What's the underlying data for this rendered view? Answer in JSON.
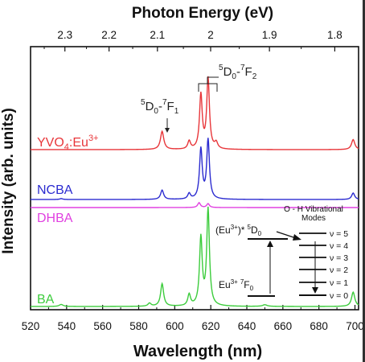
{
  "chart_data": {
    "type": "line",
    "top_axis": {
      "title": "Photon Energy (eV)",
      "ticks": [
        {
          "label": "2.3",
          "value": 2.3
        },
        {
          "label": "2.2",
          "value": 2.2
        },
        {
          "label": "2.1",
          "value": 2.1
        },
        {
          "label": "2",
          "value": 2.0
        },
        {
          "label": "1.9",
          "value": 1.9
        },
        {
          "label": "1.8",
          "value": 1.8
        }
      ]
    },
    "x_axis": {
      "title": "Wavelength (nm)",
      "range": [
        520,
        702
      ],
      "ticks": [
        "520",
        "540",
        "560",
        "580",
        "600",
        "620",
        "640",
        "660",
        "680",
        "700"
      ]
    },
    "y_axis": {
      "title": "Intensity (arb. units)"
    },
    "series": [
      {
        "name": "YVO4:Eu3+",
        "label_main": "YVO",
        "label_sub": "4",
        "label_tail": ":Eu",
        "label_sup": "3+",
        "color": "#e8363a",
        "baseline": 0.0,
        "peaks": [
          {
            "x": 593,
            "h": 0.09,
            "w": 1.1
          },
          {
            "x": 608,
            "h": 0.04,
            "w": 0.9
          },
          {
            "x": 614.5,
            "h": 0.27,
            "w": 0.9
          },
          {
            "x": 618.5,
            "h": 0.35,
            "w": 0.9
          },
          {
            "x": 623,
            "h": 0.03,
            "w": 1.0
          },
          {
            "x": 699,
            "h": 0.05,
            "w": 1.1
          }
        ]
      },
      {
        "name": "NCBA",
        "color": "#2b2bd0",
        "baseline": 0.0,
        "peaks": [
          {
            "x": 537,
            "h": 0.005,
            "w": 1.0
          },
          {
            "x": 593,
            "h": 0.05,
            "w": 1.0
          },
          {
            "x": 608,
            "h": 0.03,
            "w": 0.9
          },
          {
            "x": 614.5,
            "h": 0.27,
            "w": 0.9
          },
          {
            "x": 618.5,
            "h": 0.32,
            "w": 0.9
          },
          {
            "x": 699,
            "h": 0.035,
            "w": 1.0
          }
        ]
      },
      {
        "name": "DHBA",
        "color": "#e040e0",
        "baseline": 0.0,
        "peaks": [
          {
            "x": 613.5,
            "h": 0.05,
            "w": 0.9
          },
          {
            "x": 618.5,
            "h": 0.04,
            "w": 0.9
          }
        ]
      },
      {
        "name": "BA",
        "color": "#3ccc3c",
        "baseline": 0.0,
        "peaks": [
          {
            "x": 537,
            "h": 0.01,
            "w": 1.3
          },
          {
            "x": 586,
            "h": 0.015,
            "w": 1.0
          },
          {
            "x": 593,
            "h": 0.11,
            "w": 1.0
          },
          {
            "x": 608,
            "h": 0.055,
            "w": 0.9
          },
          {
            "x": 614.5,
            "h": 0.33,
            "w": 0.9
          },
          {
            "x": 618.5,
            "h": 0.47,
            "w": 0.9
          },
          {
            "x": 650,
            "h": 0.008,
            "w": 1.5
          },
          {
            "x": 699,
            "h": 0.07,
            "w": 1.1
          }
        ]
      }
    ],
    "annotations": {
      "f1_label": {
        "main": "D",
        "pre_sup": "5",
        "sub": "0",
        "dash": "-",
        "sup2": "7",
        "tail": "F",
        "sub2": "1"
      },
      "f2_label": {
        "main": "D",
        "pre_sup": "5",
        "sub": "0",
        "dash": "-",
        "sup2": "7",
        "tail": "F",
        "sub2": "2"
      },
      "inset": {
        "title_line1": "O - H Vibrational",
        "title_line2": "Modes",
        "excited": {
          "pre": "(Eu",
          "sup": "3+",
          "mid": ")*",
          "sup2": "5",
          "tail": "D",
          "sub": "0"
        },
        "ground": {
          "pre": "Eu",
          "sup": "3+",
          "sup2": "7",
          "tail": "F",
          "sub": "0"
        },
        "levels": [
          "ν = 5",
          "ν = 4",
          "ν = 3",
          "ν = 2",
          "ν = 1",
          "ν = 0"
        ]
      }
    },
    "grid": false,
    "legend": "inline-labels-left"
  }
}
